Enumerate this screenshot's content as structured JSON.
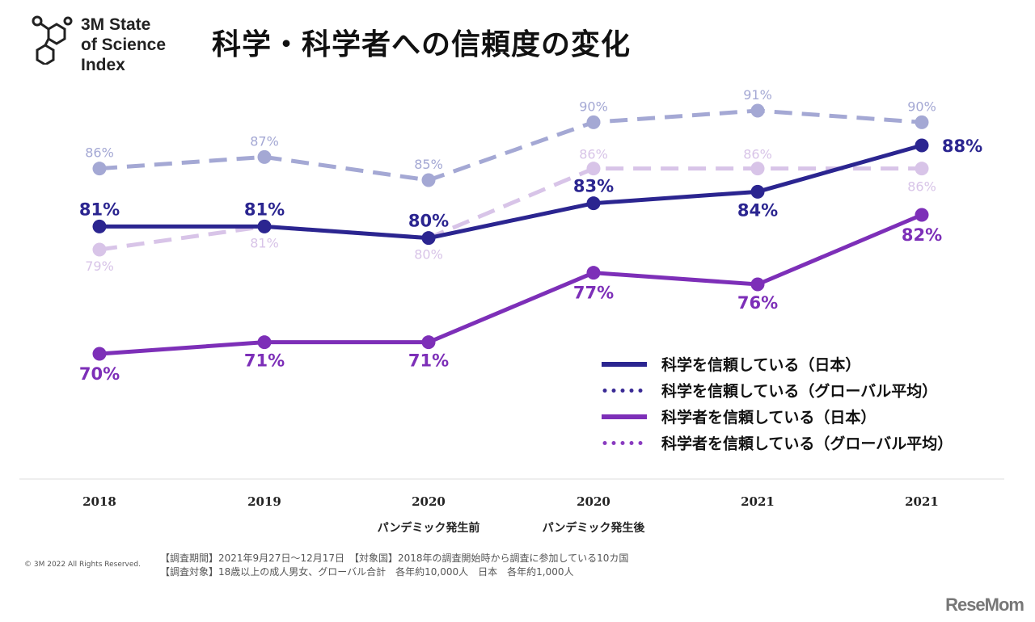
{
  "logo": {
    "line1": "3M State",
    "line2": "of Science",
    "line3": "Index"
  },
  "title": "科学・科学者への信頼度の変化",
  "chart_data": {
    "type": "line",
    "categories": [
      "2018",
      "2019",
      "2020",
      "2020",
      "2021",
      "2021"
    ],
    "sublabels": [
      "",
      "",
      "パンデミック発生前",
      "パンデミック発生後",
      "",
      ""
    ],
    "ylim": [
      70,
      91
    ],
    "series": [
      {
        "name": "科学を信頼している（日本）",
        "values": [
          81,
          81,
          80,
          83,
          84,
          88
        ],
        "color": "#2b2590",
        "style": "solid"
      },
      {
        "name": "科学を信頼している（グローバル平均）",
        "values": [
          86,
          87,
          85,
          90,
          91,
          90
        ],
        "color": "#a4a8d4",
        "style": "dashed"
      },
      {
        "name": "科学者を信頼している（日本）",
        "values": [
          70,
          71,
          71,
          77,
          76,
          82
        ],
        "color": "#7d2fb8",
        "style": "solid"
      },
      {
        "name": "科学者を信頼している（グローバル平均）",
        "values": [
          79,
          81,
          80,
          86,
          86,
          86
        ],
        "color": "#d8c4e8",
        "style": "dashed"
      }
    ],
    "legend": "bottom-right"
  },
  "footer": {
    "copyright": "© 3M  2022    All Rights Reserved.",
    "line1": "【調査期間】2021年9月27日〜12月17日　【対象国】2018年の調査開始時から調査に参加している10カ国",
    "line2": "【調査対象】18歳以上の成人男女、グローバル合計　各年約10,000人　日本　各年約1,000人"
  },
  "watermark": "ReseMom"
}
